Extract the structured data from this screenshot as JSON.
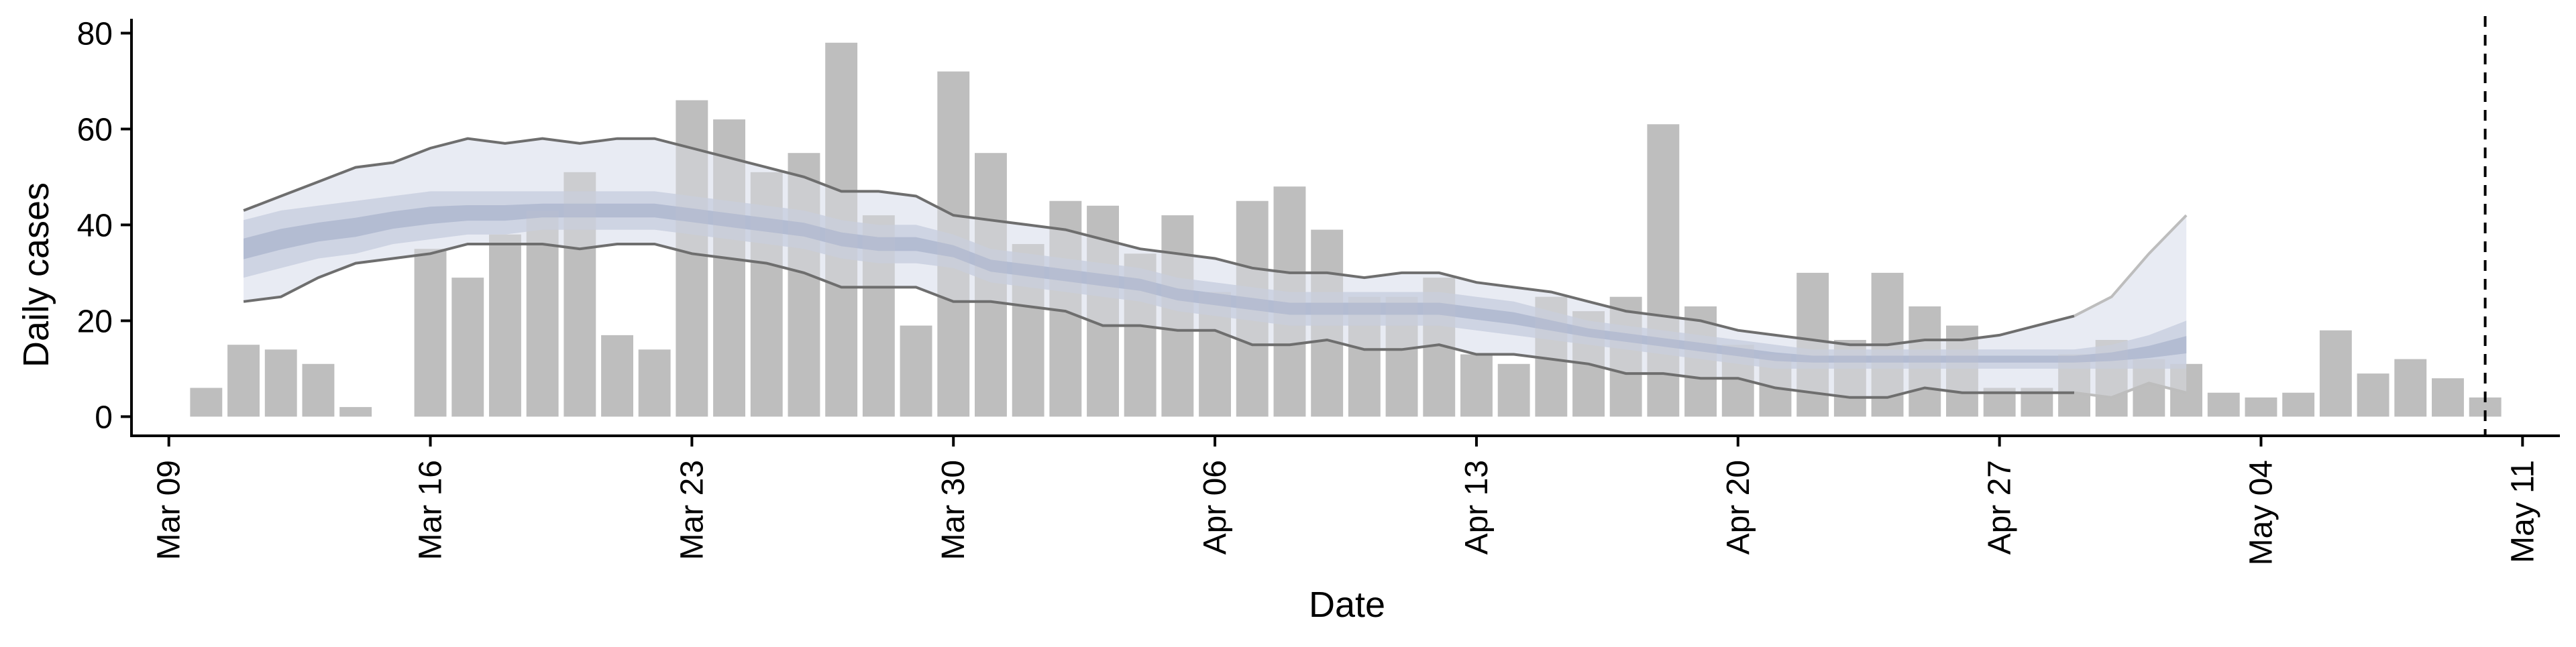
{
  "chart_data": {
    "type": "bar",
    "xlabel": "Date",
    "ylabel": "Daily cases",
    "ylim": [
      -4,
      83
    ],
    "xlim": [
      "2020-03-08",
      "2020-05-12"
    ],
    "y_ticks": [
      0,
      20,
      40,
      60,
      80
    ],
    "x_ticks": [
      {
        "date": "2020-03-09",
        "label": "Mar 09"
      },
      {
        "date": "2020-03-16",
        "label": "Mar 16"
      },
      {
        "date": "2020-03-23",
        "label": "Mar 23"
      },
      {
        "date": "2020-03-30",
        "label": "Mar 30"
      },
      {
        "date": "2020-04-06",
        "label": "Apr 06"
      },
      {
        "date": "2020-04-13",
        "label": "Apr 13"
      },
      {
        "date": "2020-04-20",
        "label": "Apr 20"
      },
      {
        "date": "2020-04-27",
        "label": "Apr 27"
      },
      {
        "date": "2020-05-04",
        "label": "May 04"
      },
      {
        "date": "2020-05-11",
        "label": "May 11"
      }
    ],
    "grid": false,
    "legend": "none",
    "bars": {
      "start_date": "2020-03-10",
      "values": [
        6,
        15,
        14,
        11,
        2,
        0,
        35,
        29,
        38,
        43,
        51,
        17,
        14,
        66,
        62,
        51,
        55,
        78,
        42,
        19,
        72,
        55,
        36,
        45,
        44,
        34,
        42,
        26,
        45,
        48,
        39,
        25,
        25,
        29,
        13,
        11,
        25,
        22,
        25,
        61,
        23,
        15,
        13,
        30,
        16,
        30,
        23,
        19,
        6,
        6,
        13,
        16,
        12,
        11,
        5,
        4,
        5,
        18,
        9,
        12,
        8,
        4
      ],
      "color": "#bebebe"
    },
    "band_outer": {
      "start_date": "2020-03-11",
      "upper": [
        43,
        46,
        49,
        52,
        53,
        56,
        58,
        57,
        58,
        57,
        58,
        58,
        56,
        54,
        52,
        50,
        47,
        47,
        46,
        42,
        41,
        40,
        39,
        37,
        35,
        34,
        33,
        31,
        30,
        30,
        29,
        30,
        30,
        28,
        27,
        26,
        24,
        22,
        21,
        20,
        18,
        17,
        16,
        15,
        15,
        16,
        16,
        17,
        19,
        21,
        25,
        34,
        42
      ],
      "lower": [
        24,
        25,
        29,
        32,
        33,
        34,
        36,
        36,
        36,
        35,
        36,
        36,
        34,
        33,
        32,
        30,
        27,
        27,
        27,
        24,
        24,
        23,
        22,
        19,
        19,
        18,
        18,
        15,
        15,
        16,
        14,
        14,
        15,
        13,
        13,
        12,
        11,
        9,
        9,
        8,
        8,
        6,
        5,
        4,
        4,
        6,
        5,
        5,
        5,
        5,
        4,
        7,
        5
      ],
      "line_color": "#6e6e6e",
      "fill_color": "#e9ebf3",
      "tail_line_color": "#bdbdbd"
    },
    "band_inner": {
      "start_date": "2020-03-11",
      "upper": [
        41,
        43,
        44,
        45,
        46,
        47,
        47,
        47,
        47,
        47,
        47,
        47,
        46,
        45,
        44,
        43,
        41,
        40,
        40,
        38,
        35,
        34,
        33,
        32,
        31,
        29,
        28,
        27,
        26,
        26,
        26,
        26,
        26,
        25,
        24,
        22,
        20,
        19,
        18,
        17,
        16,
        15,
        14,
        14,
        14,
        14,
        14,
        14,
        14,
        14,
        15,
        17,
        20
      ],
      "lower": [
        29,
        31,
        33,
        34,
        36,
        37,
        38,
        38,
        39,
        39,
        39,
        39,
        38,
        37,
        36,
        35,
        33,
        32,
        32,
        31,
        28,
        27,
        26,
        25,
        24,
        22,
        21,
        20,
        19,
        19,
        19,
        19,
        19,
        18,
        17,
        16,
        15,
        14,
        13,
        12,
        11,
        10,
        10,
        10,
        10,
        10,
        10,
        10,
        10,
        10,
        10,
        10,
        10
      ],
      "mid_fill": "#c9cfe0",
      "core_fill": "#a9b2cc"
    },
    "vline": {
      "date": "2020-05-10",
      "style": "dashed",
      "color": "#000000"
    }
  }
}
